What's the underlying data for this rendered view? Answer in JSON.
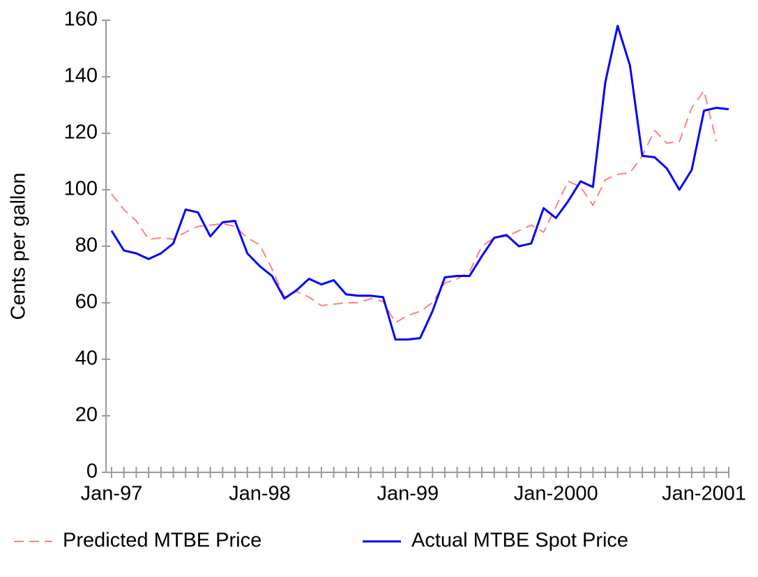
{
  "chart_data": {
    "type": "line",
    "ylabel": "Cents per gallon",
    "categories": [
      "Jan-97",
      null,
      null,
      null,
      null,
      null,
      null,
      null,
      null,
      null,
      null,
      null,
      "Jan-98",
      null,
      null,
      null,
      null,
      null,
      null,
      null,
      null,
      null,
      null,
      null,
      "Jan-99",
      null,
      null,
      null,
      null,
      null,
      null,
      null,
      null,
      null,
      null,
      null,
      "Jan-2000",
      null,
      null,
      null,
      null,
      null,
      null,
      null,
      null,
      null,
      null,
      null,
      "Jan-2001",
      null,
      null
    ],
    "series": [
      {
        "name": "Predicted MTBE Price",
        "color": "#ff8080",
        "dash": true,
        "values": [
          98.5,
          93,
          89,
          82.5,
          83,
          82.5,
          85,
          87,
          87.5,
          88,
          87,
          83,
          80.5,
          72,
          62,
          64,
          62,
          59,
          59.5,
          60,
          60,
          61.5,
          60.5,
          53,
          55.5,
          57,
          60,
          67,
          68.5,
          71,
          80,
          83,
          83.5,
          85.5,
          87.5,
          85,
          94,
          103,
          101,
          94.5,
          103.5,
          105.5,
          106,
          112,
          121,
          116.5,
          117,
          129,
          135,
          117,
          null
        ]
      },
      {
        "name": "Actual MTBE Spot Price",
        "color": "#0000ff",
        "dash": false,
        "values": [
          85.5,
          78.5,
          77.5,
          75.5,
          77.5,
          81,
          93,
          92,
          83.5,
          88.5,
          89,
          77.5,
          73,
          69.5,
          61.5,
          64.5,
          68.5,
          66.5,
          68,
          63,
          62.5,
          62.5,
          62,
          47,
          47,
          47.5,
          57,
          69,
          69.5,
          69.5,
          76.5,
          83,
          84,
          80,
          81,
          93.5,
          90,
          96,
          103,
          101,
          138,
          158,
          144,
          112,
          111.5,
          107.5,
          100,
          107,
          128,
          129,
          128.5
        ]
      }
    ],
    "ylim": [
      0,
      160
    ],
    "yticks": [
      0,
      20,
      40,
      60,
      80,
      100,
      120,
      140,
      160
    ],
    "grid": false
  }
}
